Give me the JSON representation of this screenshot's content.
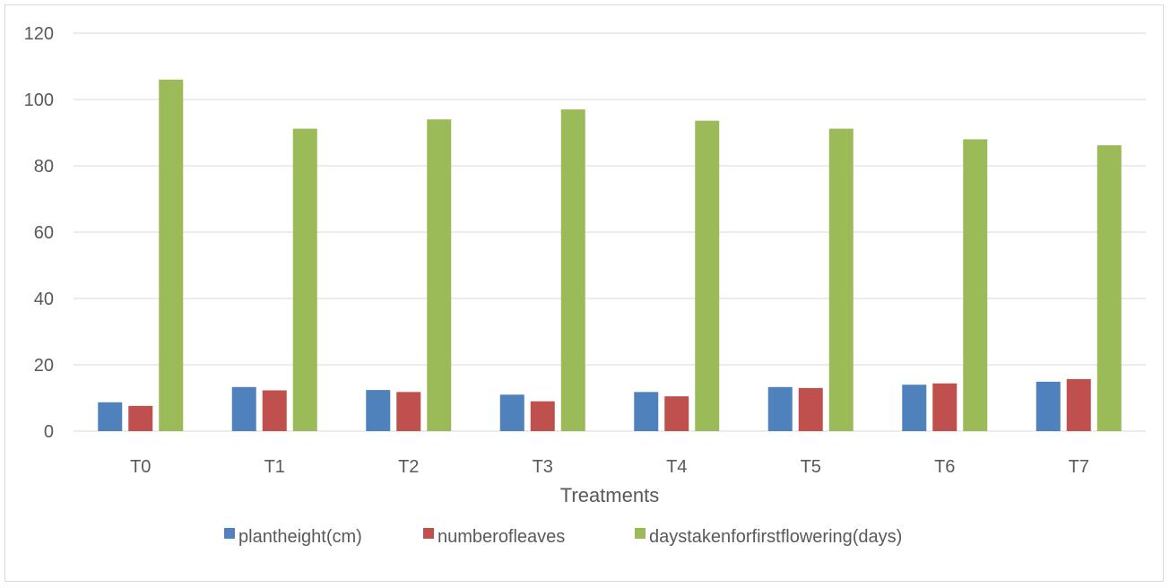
{
  "chart_data": {
    "type": "bar",
    "title": "",
    "xlabel": "Treatments",
    "ylabel": "",
    "ylim": [
      0,
      120
    ],
    "yticks": [
      0,
      20,
      40,
      60,
      80,
      100,
      120
    ],
    "grid": true,
    "legend_position": "bottom",
    "categories": [
      "T0",
      "T1",
      "T2",
      "T3",
      "T4",
      "T5",
      "T6",
      "T7"
    ],
    "series": [
      {
        "name": "plantheight(cm)",
        "color": "#4f81bd",
        "values": [
          8.7,
          13.3,
          12.4,
          11.0,
          11.8,
          13.3,
          14.0,
          14.9
        ]
      },
      {
        "name": "numberofleaves",
        "color": "#c0504d",
        "values": [
          7.6,
          12.3,
          11.8,
          9.0,
          10.5,
          13.0,
          14.4,
          15.7
        ]
      },
      {
        "name": "daystakenforfirstflowering(days)",
        "color": "#9bbb59",
        "values": [
          106,
          91.2,
          94,
          97,
          93.6,
          91.2,
          88,
          86.2
        ]
      }
    ]
  },
  "colors": {
    "gridline": "#d9d9d9",
    "axis": "#d9d9d9",
    "text": "#595959"
  }
}
